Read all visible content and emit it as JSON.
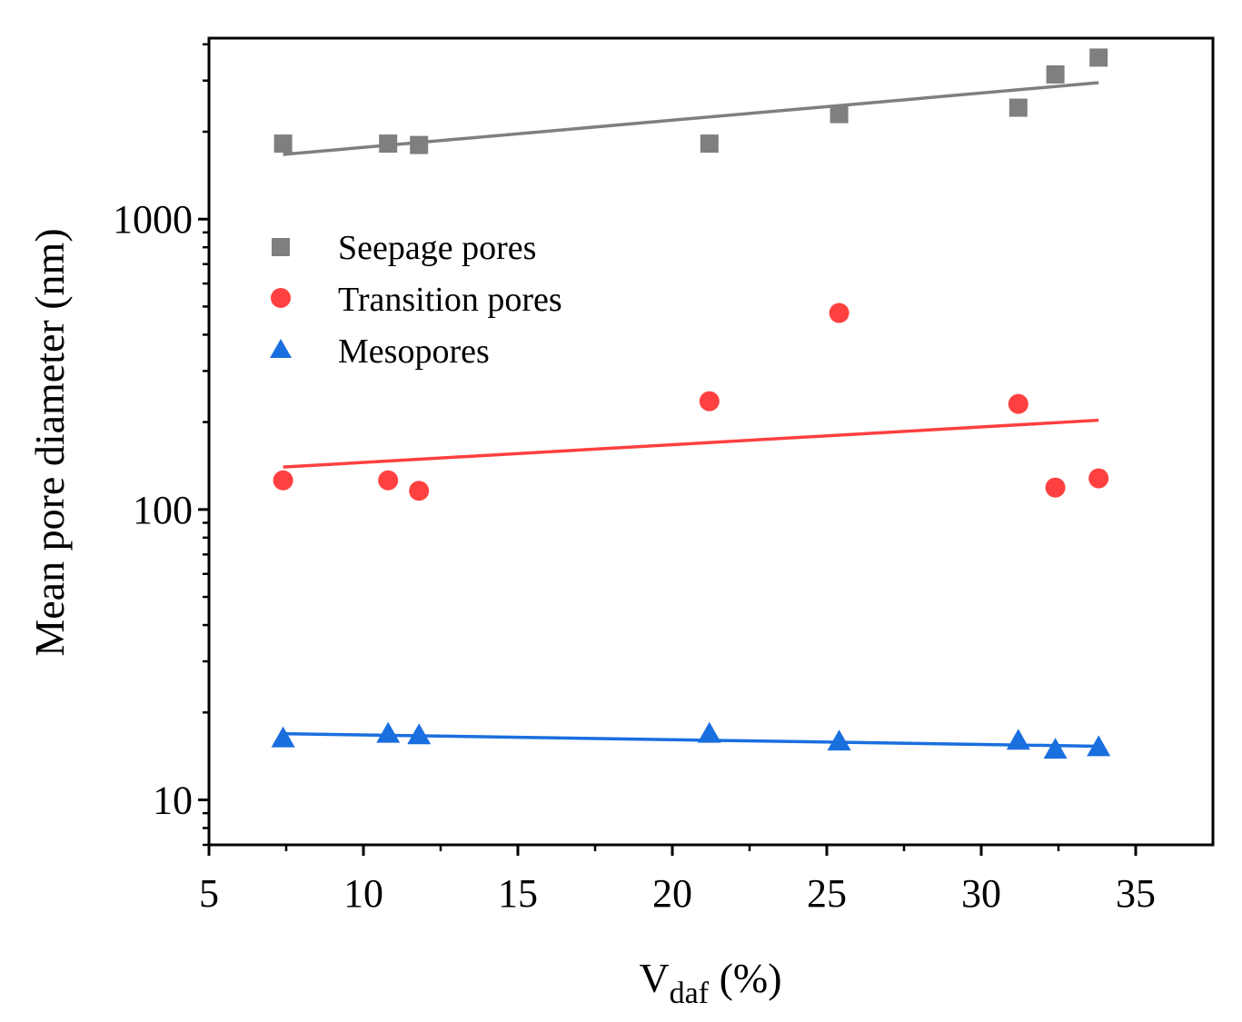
{
  "chart_data": {
    "type": "scatter",
    "title": "",
    "xlabel": "V",
    "xlabel_subscript": "daf",
    "xlabel_unit": " (%)",
    "ylabel": "Mean pore diameter (nm)",
    "xlim": [
      5,
      37.5
    ],
    "ylim": [
      7,
      4200
    ],
    "yscale": "log",
    "xticks": [
      5,
      10,
      15,
      20,
      25,
      30,
      35
    ],
    "yticks": [
      10,
      100,
      1000
    ],
    "legend_position": "upper-left",
    "series": [
      {
        "name": "Seepage pores",
        "marker": "square",
        "color": "#7f7f7f",
        "x": [
          7.4,
          10.8,
          11.8,
          21.2,
          25.4,
          31.2,
          32.4,
          33.8
        ],
        "y": [
          1820,
          1820,
          1800,
          1820,
          2300,
          2420,
          3150,
          3600
        ],
        "fit": {
          "x": [
            7.4,
            33.8
          ],
          "y": [
            1670,
            2950
          ]
        }
      },
      {
        "name": "Transition pores",
        "marker": "circle",
        "color": "#ff4040",
        "x": [
          7.4,
          10.8,
          11.8,
          21.2,
          25.4,
          31.2,
          32.4,
          33.8
        ],
        "y": [
          126,
          126,
          116,
          236,
          475,
          231,
          119,
          128
        ],
        "fit": {
          "x": [
            7.4,
            33.8
          ],
          "y": [
            140,
            203
          ]
        }
      },
      {
        "name": "Mesopores",
        "marker": "triangle",
        "color": "#1a6fdf",
        "x": [
          7.4,
          10.8,
          11.8,
          21.2,
          25.4,
          31.2,
          32.4,
          33.8
        ],
        "y": [
          16.3,
          16.9,
          16.7,
          16.9,
          15.9,
          16.0,
          14.9,
          15.2
        ],
        "fit": {
          "x": [
            7.4,
            33.8
          ],
          "y": [
            16.9,
            15.3
          ]
        }
      }
    ]
  }
}
